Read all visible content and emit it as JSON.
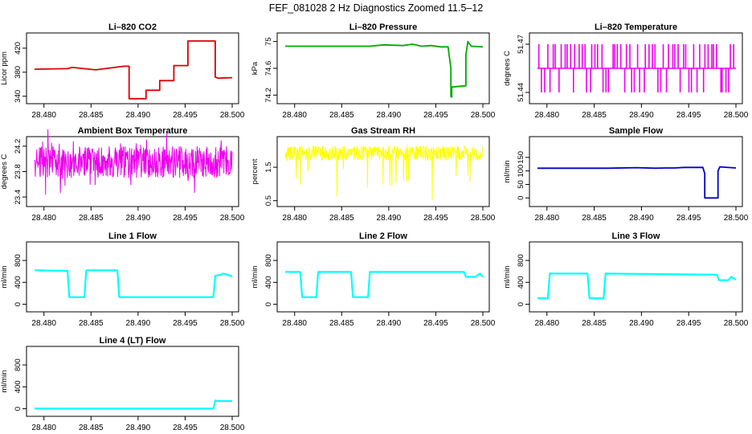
{
  "title": "FEF_081028  2 Hz Diagnostics Zoomed 11.5–12",
  "chart_data": [
    {
      "type": "line",
      "title": "Li–820 CO2",
      "ylabel": "Licor ppm",
      "color": "#dd0000",
      "xlim": [
        28.479,
        28.5
      ],
      "ylim": [
        333,
        440
      ],
      "yticks": [
        340,
        380,
        420
      ],
      "xticks": [
        "28.480",
        "28.485",
        "28.490",
        "28.495",
        "28.500"
      ],
      "series": [
        {
          "x": [
            28.479,
            28.4825,
            28.483,
            28.4855,
            28.486,
            28.4885,
            28.48905,
            28.48905,
            28.49085,
            28.49085,
            28.4923,
            28.4923,
            28.4938,
            28.4938,
            28.4953,
            28.4953,
            28.4982,
            28.4982,
            28.4985,
            28.5
          ],
          "y": [
            385,
            386,
            388,
            384,
            385,
            390,
            390,
            336,
            336,
            350,
            350,
            366,
            366,
            391,
            391,
            432,
            432,
            372,
            370,
            371
          ]
        }
      ]
    },
    {
      "type": "line",
      "title": "Li–820 Pressure",
      "ylabel": "kPa",
      "color": "#00aa00",
      "xlim": [
        28.479,
        28.5
      ],
      "ylim": [
        74.12,
        75.08
      ],
      "yticks": [
        74.2,
        74.6,
        75.0
      ],
      "xticks": [
        "28.480",
        "28.485",
        "28.490",
        "28.495",
        "28.500"
      ],
      "series": [
        {
          "x": [
            28.479,
            28.488,
            28.4895,
            28.4915,
            28.4925,
            28.4935,
            28.4945,
            28.4955,
            28.4963,
            28.4966,
            28.4966,
            28.4967,
            28.4967,
            28.4982,
            28.4982,
            28.4984,
            28.4986,
            28.4988,
            28.5
          ],
          "y": [
            74.93,
            74.93,
            74.95,
            74.94,
            74.96,
            74.93,
            74.94,
            74.92,
            74.92,
            74.6,
            74.18,
            74.17,
            74.32,
            74.34,
            74.8,
            75.0,
            74.96,
            74.93,
            74.92
          ]
        }
      ]
    },
    {
      "type": "line",
      "title": "Li–820 Temperature",
      "ylabel": "degrees C",
      "color": "#ee00ee",
      "xlim": [
        28.479,
        28.5
      ],
      "ylim": [
        51.435,
        51.475
      ],
      "yticks": [
        51.44,
        51.47
      ],
      "xticks": [
        "28.480",
        "28.485",
        "28.490",
        "28.495",
        "28.500"
      ],
      "series": [
        {
          "x": [
            28.479,
            28.5
          ],
          "y": [
            51.455,
            51.455
          ]
        }
      ]
    },
    {
      "type": "line",
      "title": "Ambient Box Temperature",
      "ylabel": "degrees C",
      "color": "#ee00ee",
      "xlim": [
        28.479,
        28.5
      ],
      "ylim": [
        23.3,
        24.3
      ],
      "yticks": [
        23.4,
        23.8,
        24.2
      ],
      "xticks": [
        "28.480",
        "28.485",
        "28.490",
        "28.495",
        "28.500"
      ],
      "series": [
        {
          "x": [
            28.479,
            28.5
          ],
          "y": [
            23.95,
            23.95
          ]
        }
      ]
    },
    {
      "type": "line",
      "title": "Gas Stream RH",
      "ylabel": "percent",
      "color": "#ffff00",
      "xlim": [
        28.479,
        28.5
      ],
      "ylim": [
        0.42,
        2.32
      ],
      "yticks": [
        0.5,
        1.5
      ],
      "xticks": [
        "28.480",
        "28.485",
        "28.490",
        "28.495",
        "28.500"
      ],
      "series": [
        {
          "x": [
            28.479,
            28.5
          ],
          "y": [
            1.9,
            1.9
          ]
        }
      ]
    },
    {
      "type": "line",
      "title": "Sample Flow",
      "ylabel": "ml/min",
      "color": "#0000cc",
      "xlim": [
        28.479,
        28.5
      ],
      "ylim": [
        -20,
        215
      ],
      "yticks": [
        0,
        50,
        100,
        150
      ],
      "xticks": [
        "28.480",
        "28.485",
        "28.490",
        "28.495",
        "28.500"
      ],
      "series": [
        {
          "x": [
            28.479,
            28.4865,
            28.4895,
            28.4915,
            28.4925,
            28.4935,
            28.4945,
            28.4965,
            28.4967,
            28.4967,
            28.4981,
            28.4981,
            28.4983,
            28.5
          ],
          "y": [
            110,
            110,
            112,
            110,
            111,
            111,
            113,
            113,
            90,
            0,
            0,
            100,
            115,
            111
          ]
        }
      ]
    },
    {
      "type": "line",
      "title": "Line 1 Flow",
      "ylabel": "ml/min",
      "color": "#00ffff",
      "xlim": [
        28.479,
        28.5
      ],
      "ylim": [
        -80,
        1080
      ],
      "yticks": [
        0,
        400,
        800
      ],
      "xticks": [
        "28.480",
        "28.485",
        "28.490",
        "28.495",
        "28.500"
      ],
      "series": [
        {
          "x": [
            28.479,
            28.4825,
            28.4827,
            28.4843,
            28.4845,
            28.4878,
            28.488,
            28.498,
            28.4982,
            28.4988,
            28.499,
            28.4995,
            28.5
          ],
          "y": [
            620,
            610,
            130,
            130,
            620,
            620,
            130,
            130,
            520,
            540,
            560,
            540,
            510
          ]
        }
      ]
    },
    {
      "type": "line",
      "title": "Line 2 Flow",
      "ylabel": "ml/min",
      "color": "#00ffff",
      "xlim": [
        28.479,
        28.5
      ],
      "ylim": [
        -80,
        1080
      ],
      "yticks": [
        0,
        400,
        800
      ],
      "xticks": [
        "28.480",
        "28.485",
        "28.490",
        "28.495",
        "28.500"
      ],
      "series": [
        {
          "x": [
            28.479,
            28.4806,
            28.4808,
            28.4823,
            28.4825,
            28.486,
            28.4862,
            28.4878,
            28.488,
            28.498,
            28.4982,
            28.4992,
            28.4997,
            28.5
          ],
          "y": [
            590,
            590,
            130,
            130,
            590,
            590,
            130,
            130,
            590,
            590,
            500,
            500,
            560,
            500
          ]
        }
      ]
    },
    {
      "type": "line",
      "title": "Line 3 Flow",
      "ylabel": "ml/min",
      "color": "#00ffff",
      "xlim": [
        28.479,
        28.5
      ],
      "ylim": [
        -80,
        1080
      ],
      "yticks": [
        0,
        400,
        800
      ],
      "xticks": [
        "28.480",
        "28.485",
        "28.490",
        "28.495",
        "28.500"
      ],
      "series": [
        {
          "x": [
            28.479,
            28.4801,
            28.4803,
            28.4843,
            28.4845,
            28.486,
            28.4862,
            28.498,
            28.4982,
            28.4992,
            28.4995,
            28.5
          ],
          "y": [
            110,
            110,
            560,
            560,
            110,
            110,
            560,
            540,
            440,
            440,
            500,
            450
          ]
        }
      ]
    },
    {
      "type": "line",
      "title": "Line 4 (LT) Flow",
      "ylabel": "ml/min",
      "color": "#00ffff",
      "xlim": [
        28.479,
        28.5
      ],
      "ylim": [
        -80,
        1080
      ],
      "yticks": [
        0,
        400,
        800
      ],
      "xticks": [
        "28.480",
        "28.485",
        "28.490",
        "28.495",
        "28.500"
      ],
      "series": [
        {
          "x": [
            28.479,
            28.498,
            28.4982,
            28.4985,
            28.5
          ],
          "y": [
            2,
            2,
            150,
            140,
            140
          ]
        }
      ]
    }
  ]
}
